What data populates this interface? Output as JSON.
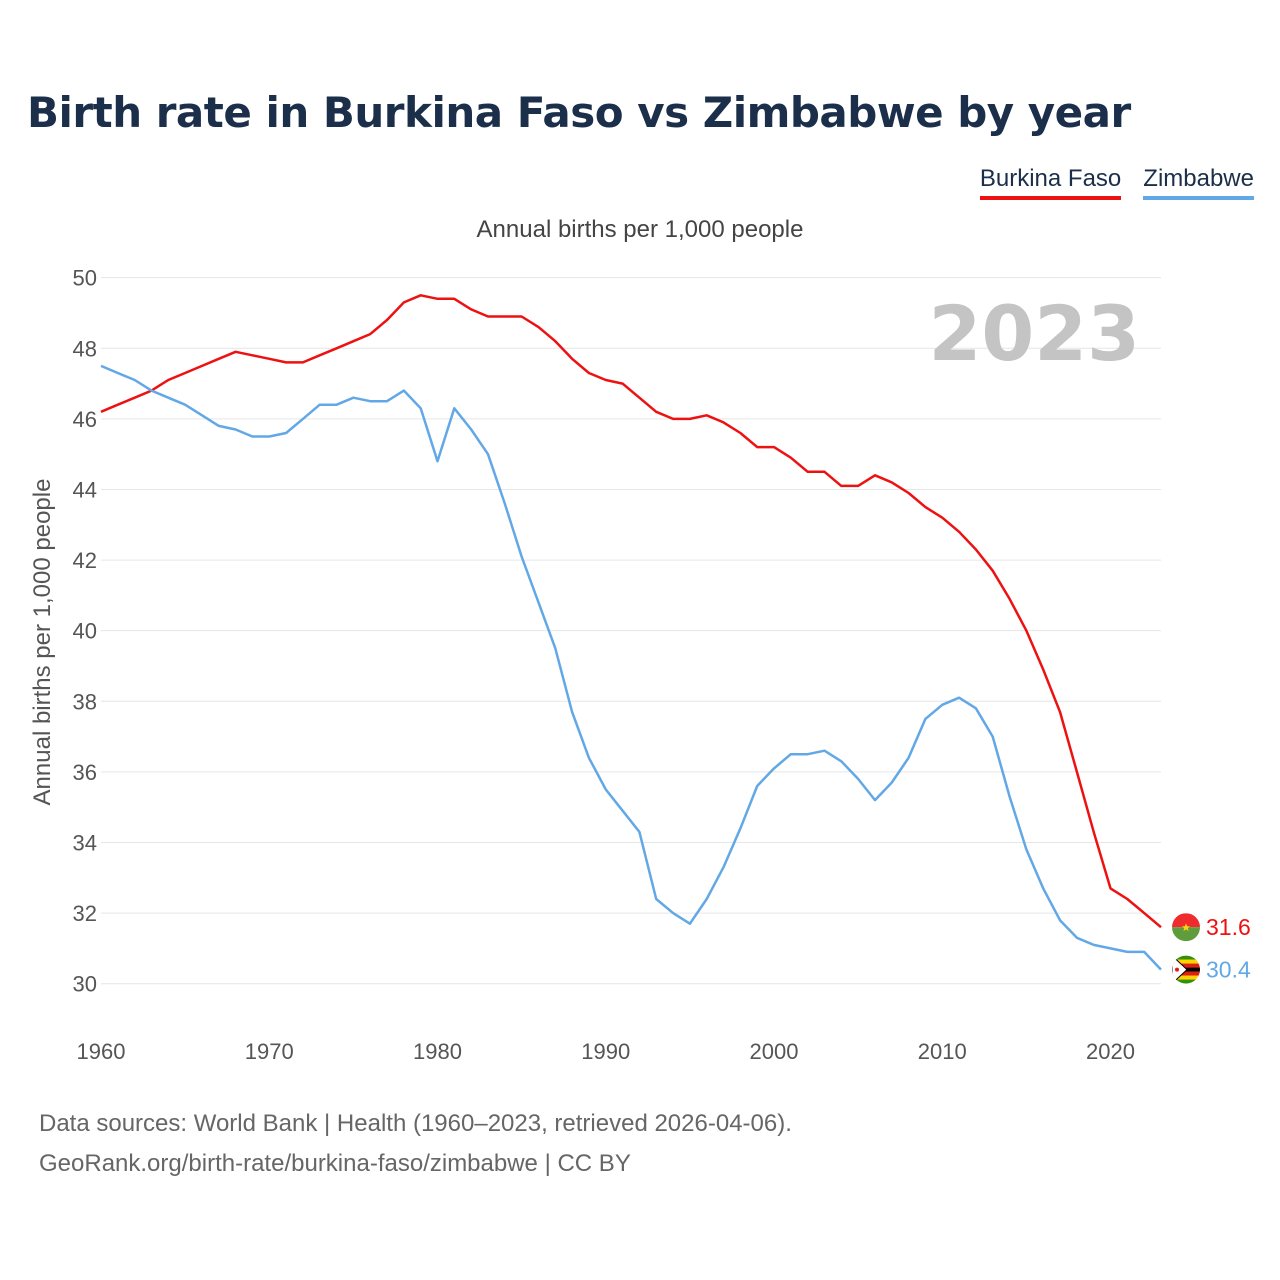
{
  "title": "Birth rate in Burkina Faso vs Zimbabwe by year",
  "subtitle": "Annual births per 1,000 people",
  "legend": [
    {
      "name": "Burkina Faso",
      "color": "#ee1111"
    },
    {
      "name": "Zimbabwe",
      "color": "#62a8e6"
    }
  ],
  "year_watermark": "2023",
  "footer": {
    "line1": "Data sources: World Bank | Health (1960–2023, retrieved 2026-04-06).",
    "line2": "GeoRank.org/birth-rate/burkina-faso/zimbabwe | CC BY"
  },
  "chart_data": {
    "type": "line",
    "title": "Birth rate in Burkina Faso vs Zimbabwe by year",
    "ylabel": "Annual births per 1,000 people",
    "xlabel": "",
    "xlim": [
      1960,
      2023
    ],
    "ylim": [
      29,
      50.5
    ],
    "x_ticks": [
      1960,
      1970,
      1980,
      1990,
      2000,
      2010,
      2020
    ],
    "y_ticks": [
      30,
      32,
      34,
      36,
      38,
      40,
      42,
      44,
      46,
      48,
      50
    ],
    "grid": true,
    "legend_position": "top-right",
    "x": [
      1960,
      1961,
      1962,
      1963,
      1964,
      1965,
      1966,
      1967,
      1968,
      1969,
      1970,
      1971,
      1972,
      1973,
      1974,
      1975,
      1976,
      1977,
      1978,
      1979,
      1980,
      1981,
      1982,
      1983,
      1984,
      1985,
      1986,
      1987,
      1988,
      1989,
      1990,
      1991,
      1992,
      1993,
      1994,
      1995,
      1996,
      1997,
      1998,
      1999,
      2000,
      2001,
      2002,
      2003,
      2004,
      2005,
      2006,
      2007,
      2008,
      2009,
      2010,
      2011,
      2012,
      2013,
      2014,
      2015,
      2016,
      2017,
      2018,
      2019,
      2020,
      2021,
      2022,
      2023
    ],
    "series": [
      {
        "name": "Burkina Faso",
        "color": "#ee1111",
        "end_label": "31.6",
        "values": [
          46.2,
          46.4,
          46.6,
          46.8,
          47.1,
          47.3,
          47.5,
          47.7,
          47.9,
          47.8,
          47.7,
          47.6,
          47.6,
          47.8,
          48.0,
          48.2,
          48.4,
          48.8,
          49.3,
          49.5,
          49.4,
          49.4,
          49.1,
          48.9,
          48.9,
          48.9,
          48.6,
          48.2,
          47.7,
          47.3,
          47.1,
          47.0,
          46.6,
          46.2,
          46.0,
          46.0,
          46.1,
          45.9,
          45.6,
          45.2,
          45.2,
          44.9,
          44.5,
          44.5,
          44.1,
          44.1,
          44.4,
          44.2,
          43.9,
          43.5,
          43.2,
          42.8,
          42.3,
          41.7,
          40.9,
          40.0,
          38.9,
          37.7,
          36.0,
          34.3,
          32.7,
          32.4,
          32.0,
          31.6
        ]
      },
      {
        "name": "Zimbabwe",
        "color": "#62a8e6",
        "end_label": "30.4",
        "values": [
          47.5,
          47.3,
          47.1,
          46.8,
          46.6,
          46.4,
          46.1,
          45.8,
          45.7,
          45.5,
          45.5,
          45.6,
          46.0,
          46.4,
          46.4,
          46.6,
          46.5,
          46.5,
          46.8,
          46.3,
          44.8,
          46.3,
          45.7,
          45.0,
          43.6,
          42.1,
          40.8,
          39.5,
          37.7,
          36.4,
          35.5,
          34.9,
          34.3,
          32.4,
          32.0,
          31.7,
          32.4,
          33.3,
          34.4,
          35.6,
          36.1,
          36.5,
          36.5,
          36.6,
          36.3,
          35.8,
          35.2,
          35.7,
          36.4,
          37.5,
          37.9,
          38.1,
          37.8,
          37.0,
          35.3,
          33.8,
          32.7,
          31.8,
          31.3,
          31.1,
          31.0,
          30.9,
          30.9,
          30.4
        ]
      }
    ]
  }
}
